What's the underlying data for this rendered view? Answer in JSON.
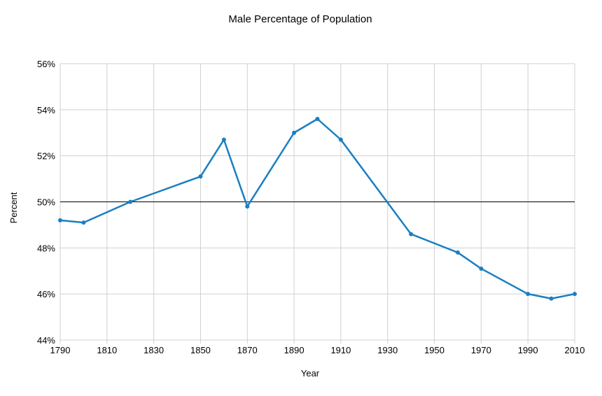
{
  "chart_data": {
    "type": "line",
    "title": "Male Percentage of Population",
    "xlabel": "Year",
    "ylabel": "Percent",
    "xlim": [
      1790,
      2010
    ],
    "ylim": [
      44,
      56
    ],
    "x_ticks": [
      1790,
      1810,
      1830,
      1850,
      1870,
      1890,
      1910,
      1930,
      1950,
      1970,
      1990,
      2010
    ],
    "x_tick_labels": [
      "1790",
      "1810",
      "1830",
      "1850",
      "1870",
      "1890",
      "1910",
      "1930",
      "1950",
      "1970",
      "1990",
      "2010"
    ],
    "y_ticks": [
      44,
      46,
      48,
      50,
      52,
      54,
      56
    ],
    "y_tick_labels": [
      "44%",
      "46%",
      "48%",
      "50%",
      "52%",
      "54%",
      "56%"
    ],
    "grid": true,
    "reference_line": 50,
    "colors": {
      "series": "#1a7fc1",
      "grid": "#d0d0d0",
      "reference": "#000000"
    },
    "series": [
      {
        "x": [
          1790,
          1800,
          1820,
          1850,
          1860,
          1870,
          1890,
          1900,
          1910,
          1940,
          1960,
          1970,
          1990,
          2000,
          2010
        ],
        "y": [
          49.2,
          49.1,
          50.0,
          51.1,
          52.7,
          49.8,
          53.0,
          53.6,
          52.7,
          48.6,
          47.8,
          47.1,
          46.0,
          45.8,
          46.0
        ]
      }
    ]
  }
}
